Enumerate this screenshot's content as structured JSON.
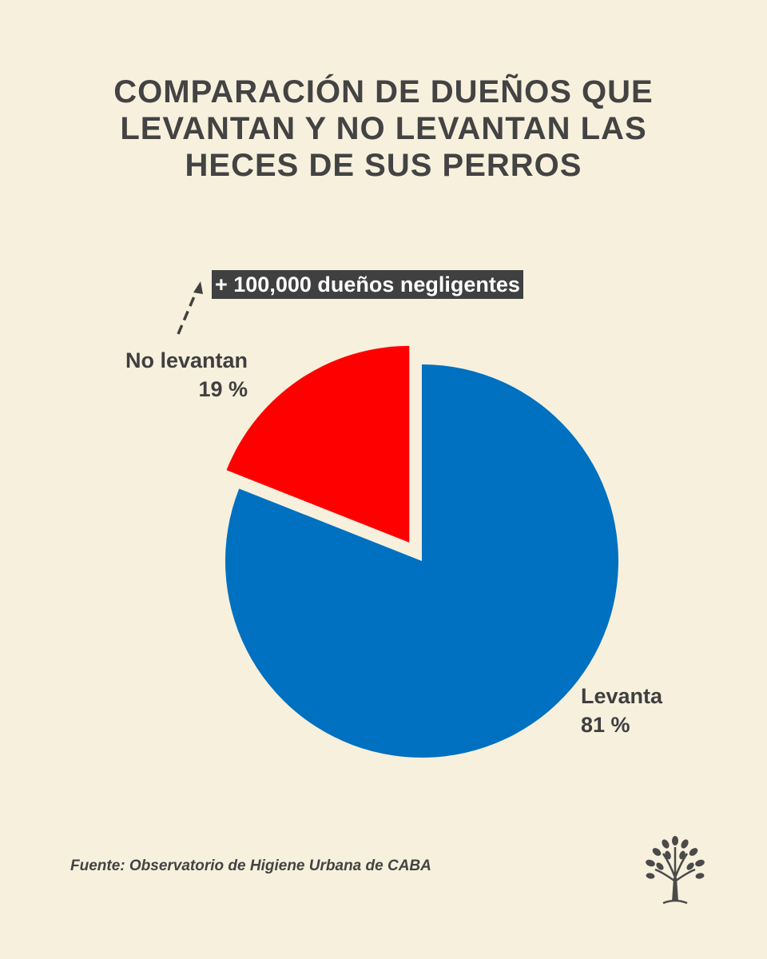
{
  "header": {
    "title_lines": [
      "COMPARACIÓN DE DUEÑOS QUE",
      "LEVANTAN Y NO LEVANTAN LAS",
      "HECES DE SUS PERROS"
    ]
  },
  "annotation": "+ 100,000 dueños negligentes",
  "chart_data": {
    "type": "pie",
    "title": "COMPARACIÓN DE DUEÑOS QUE LEVANTAN Y NO LEVANTAN LAS HECES DE SUS PERROS",
    "slices": [
      {
        "label": "Levanta",
        "value": 81,
        "value_label": "81 %",
        "color": "#0070C0",
        "exploded": false
      },
      {
        "label": "No levantan",
        "value": 19,
        "value_label": "19 %",
        "color": "#FF0000",
        "exploded": true
      }
    ],
    "start": "12 o'clock, clockwise",
    "legend": "none (direct labels)"
  },
  "footer": {
    "source": "Fuente: Observatorio de Higiene Urbana de CABA"
  },
  "logo": {
    "icon": "tree-icon",
    "color": "#4a4a4a"
  }
}
